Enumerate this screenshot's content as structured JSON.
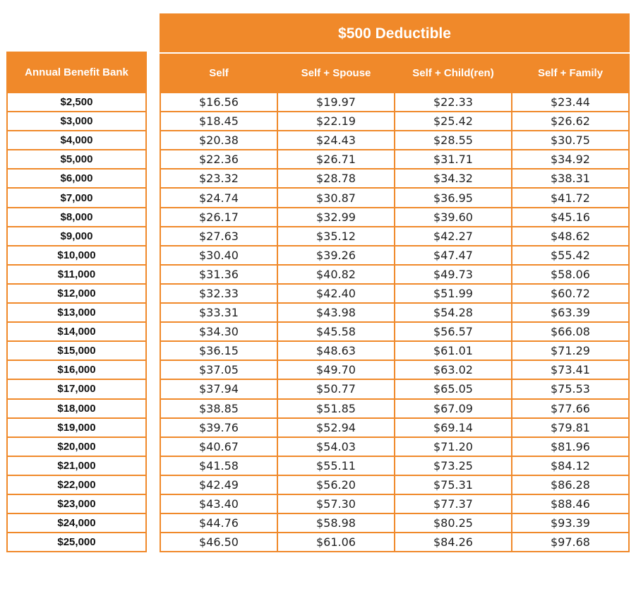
{
  "deductible_header": "$500 Deductible",
  "benefit_header": "Annual Benefit Bank",
  "columns": [
    "Self",
    "Self + Spouse",
    "Self + Child(ren)",
    "Self + Family"
  ],
  "colors": {
    "accent": "#f0892a"
  },
  "rows": [
    {
      "bank": "$2,500",
      "rates": [
        "$16.56",
        "$19.97",
        "$22.33",
        "$23.44"
      ]
    },
    {
      "bank": "$3,000",
      "rates": [
        "$18.45",
        "$22.19",
        "$25.42",
        "$26.62"
      ]
    },
    {
      "bank": "$4,000",
      "rates": [
        "$20.38",
        "$24.43",
        "$28.55",
        "$30.75"
      ]
    },
    {
      "bank": "$5,000",
      "rates": [
        "$22.36",
        "$26.71",
        "$31.71",
        "$34.92"
      ]
    },
    {
      "bank": "$6,000",
      "rates": [
        "$23.32",
        "$28.78",
        "$34.32",
        "$38.31"
      ]
    },
    {
      "bank": "$7,000",
      "rates": [
        "$24.74",
        "$30.87",
        "$36.95",
        "$41.72"
      ]
    },
    {
      "bank": "$8,000",
      "rates": [
        "$26.17",
        "$32.99",
        "$39.60",
        "$45.16"
      ]
    },
    {
      "bank": "$9,000",
      "rates": [
        "$27.63",
        "$35.12",
        "$42.27",
        "$48.62"
      ]
    },
    {
      "bank": "$10,000",
      "rates": [
        "$30.40",
        "$39.26",
        "$47.47",
        "$55.42"
      ]
    },
    {
      "bank": "$11,000",
      "rates": [
        "$31.36",
        "$40.82",
        "$49.73",
        "$58.06"
      ]
    },
    {
      "bank": "$12,000",
      "rates": [
        "$32.33",
        "$42.40",
        "$51.99",
        "$60.72"
      ]
    },
    {
      "bank": "$13,000",
      "rates": [
        "$33.31",
        "$43.98",
        "$54.28",
        "$63.39"
      ]
    },
    {
      "bank": "$14,000",
      "rates": [
        "$34.30",
        "$45.58",
        "$56.57",
        "$66.08"
      ]
    },
    {
      "bank": "$15,000",
      "rates": [
        "$36.15",
        "$48.63",
        "$61.01",
        "$71.29"
      ]
    },
    {
      "bank": "$16,000",
      "rates": [
        "$37.05",
        "$49.70",
        "$63.02",
        "$73.41"
      ]
    },
    {
      "bank": "$17,000",
      "rates": [
        "$37.94",
        "$50.77",
        "$65.05",
        "$75.53"
      ]
    },
    {
      "bank": "$18,000",
      "rates": [
        "$38.85",
        "$51.85",
        "$67.09",
        "$77.66"
      ]
    },
    {
      "bank": "$19,000",
      "rates": [
        "$39.76",
        "$52.94",
        "$69.14",
        "$79.81"
      ]
    },
    {
      "bank": "$20,000",
      "rates": [
        "$40.67",
        "$54.03",
        "$71.20",
        "$81.96"
      ]
    },
    {
      "bank": "$21,000",
      "rates": [
        "$41.58",
        "$55.11",
        "$73.25",
        "$84.12"
      ]
    },
    {
      "bank": "$22,000",
      "rates": [
        "$42.49",
        "$56.20",
        "$75.31",
        "$86.28"
      ]
    },
    {
      "bank": "$23,000",
      "rates": [
        "$43.40",
        "$57.30",
        "$77.37",
        "$88.46"
      ]
    },
    {
      "bank": "$24,000",
      "rates": [
        "$44.76",
        "$58.98",
        "$80.25",
        "$93.39"
      ]
    },
    {
      "bank": "$25,000",
      "rates": [
        "$46.50",
        "$61.06",
        "$84.26",
        "$97.68"
      ]
    }
  ]
}
